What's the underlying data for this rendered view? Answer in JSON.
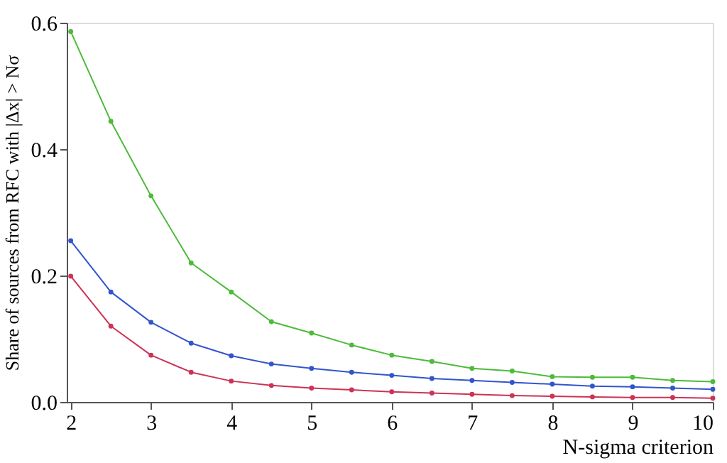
{
  "chart_data": {
    "type": "line",
    "xlabel": "N-sigma criterion",
    "ylabel": "Share of sources from RFC with |Δx| > Nσ",
    "x": [
      2,
      2.5,
      3,
      3.5,
      4,
      4.5,
      5,
      5.5,
      6,
      6.5,
      7,
      7.5,
      8,
      8.5,
      9,
      9.5,
      10
    ],
    "series": [
      {
        "color": "#4cbb3a",
        "values": [
          0.586,
          0.444,
          0.326,
          0.22,
          0.174,
          0.127,
          0.109,
          0.09,
          0.074,
          0.064,
          0.053,
          0.049,
          0.04,
          0.039,
          0.039,
          0.034,
          0.032
        ]
      },
      {
        "color": "#3355cc",
        "values": [
          0.255,
          0.174,
          0.126,
          0.093,
          0.073,
          0.06,
          0.053,
          0.047,
          0.042,
          0.037,
          0.034,
          0.031,
          0.028,
          0.025,
          0.024,
          0.022,
          0.02
        ]
      },
      {
        "color": "#cc3355",
        "values": [
          0.199,
          0.12,
          0.074,
          0.047,
          0.033,
          0.026,
          0.022,
          0.019,
          0.016,
          0.014,
          0.012,
          0.01,
          0.009,
          0.008,
          0.007,
          0.007,
          0.006
        ]
      }
    ],
    "xlim": [
      1.95,
      10
    ],
    "xticks": [
      2,
      3,
      4,
      5,
      6,
      7,
      8,
      9,
      10
    ],
    "ylim": [
      0,
      0.6
    ],
    "yticks": [
      {
        "value": 0,
        "label": "0.0"
      },
      0.2,
      0.4,
      0.6
    ],
    "grid": false,
    "legend": false,
    "marker": "circle",
    "line_style": "solid"
  }
}
